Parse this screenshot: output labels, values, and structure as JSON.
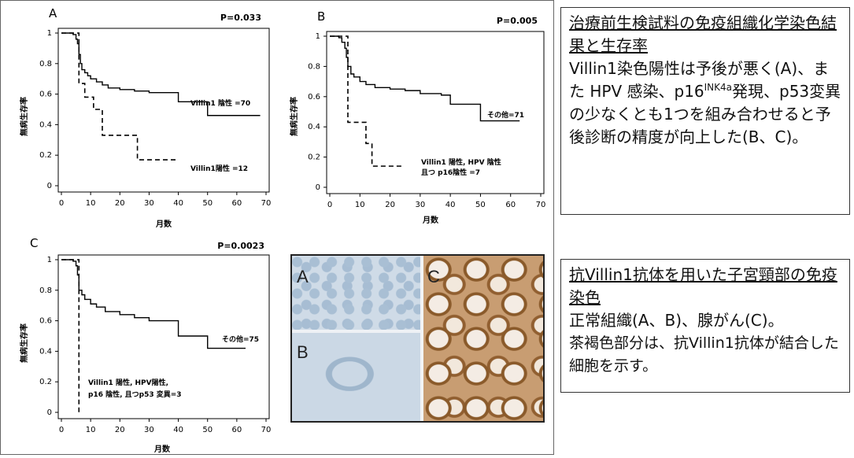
{
  "figure": {
    "panels": [
      {
        "letter": "A",
        "pvalue": "P=0.033",
        "xlabel": "月数",
        "ylabel": "無病生存率",
        "xticks": [
          "0",
          "10",
          "20",
          "30",
          "40",
          "50",
          "60",
          "70"
        ],
        "yticks": [
          "0",
          "0.2",
          "0.4",
          "0.6",
          "0.8",
          "1"
        ],
        "series_labels": [
          "Villin1 陰性 =70",
          "Villin1陽性 =12"
        ]
      },
      {
        "letter": "B",
        "pvalue": "P=0.005",
        "xlabel": "月数",
        "ylabel": "無病生存率",
        "xticks": [
          "0",
          "10",
          "20",
          "30",
          "40",
          "50",
          "60",
          "70"
        ],
        "yticks": [
          "0",
          "0.2",
          "0.4",
          "0.6",
          "0.8",
          "1"
        ],
        "series_labels": [
          "その他=71",
          "Villin1 陽性, HPV 陰性",
          "且つ p16陰性 =7"
        ]
      },
      {
        "letter": "C",
        "pvalue": "P=0.0023",
        "xlabel": "月数",
        "ylabel": "無病生存率",
        "xticks": [
          "0",
          "10",
          "20",
          "30",
          "40",
          "50",
          "60",
          "70"
        ],
        "yticks": [
          "0",
          "0.2",
          "0.4",
          "0.6",
          "0.8",
          "1"
        ],
        "series_labels": [
          "その他=75",
          "Villin1 陽性, HPV陽性,",
          "p16 陰性, 且つp53 変異=3"
        ]
      }
    ],
    "micro_labels": [
      "A",
      "B",
      "C"
    ]
  },
  "box1": {
    "title": "治療前生検試料の免疫組織化学染色結果と生存率",
    "body_pre": "Villin1染色陽性は予後が悪く(A)、また HPV 感染、p16",
    "body_sup": "INK4a",
    "body_post": "発現、p53変異の少なくとも1つを組み合わせると予後診断の精度が向上した(B、C)。"
  },
  "box2": {
    "title": "抗Villin1抗体を用いた子宮頸部の免疫染色",
    "line1": "正常組織(A、B)、腺がん(C)。",
    "line2": "茶褐色部分は、抗Villin1抗体が結合した細胞を示す。"
  },
  "chart_data": [
    {
      "type": "line",
      "title": "",
      "xlabel": "月数",
      "ylabel": "無病生存率",
      "xlim": [
        0,
        70
      ],
      "ylim": [
        0,
        1
      ],
      "series": [
        {
          "name": "Villin1 陰性 =70",
          "style": "solid",
          "x": [
            0,
            4,
            5,
            5.5,
            6,
            6.5,
            7,
            8,
            9,
            10,
            12,
            14,
            16,
            20,
            25,
            30,
            40,
            50,
            68
          ],
          "y": [
            1,
            0.99,
            0.96,
            0.93,
            0.86,
            0.8,
            0.76,
            0.74,
            0.72,
            0.7,
            0.68,
            0.66,
            0.64,
            0.63,
            0.62,
            0.61,
            0.55,
            0.46,
            0.46
          ]
        },
        {
          "name": "Villin1陽性 =12",
          "style": "dashed",
          "x": [
            0,
            5,
            6,
            8,
            11,
            14,
            26,
            40
          ],
          "y": [
            1,
            1,
            0.67,
            0.58,
            0.5,
            0.33,
            0.17,
            0.17
          ]
        }
      ]
    },
    {
      "type": "line",
      "title": "",
      "xlabel": "月数",
      "ylabel": "無病生存率",
      "xlim": [
        0,
        70
      ],
      "ylim": [
        0,
        1
      ],
      "series": [
        {
          "name": "その他=71",
          "style": "solid",
          "x": [
            0,
            3,
            4,
            5,
            5.5,
            6,
            7,
            8,
            10,
            12,
            15,
            20,
            25,
            30,
            37,
            40,
            50,
            63
          ],
          "y": [
            1,
            0.99,
            0.96,
            0.92,
            0.86,
            0.8,
            0.75,
            0.73,
            0.7,
            0.68,
            0.66,
            0.65,
            0.64,
            0.62,
            0.61,
            0.55,
            0.44,
            0.44
          ]
        },
        {
          "name": "Villin1 陽性, HPV 陰性 且つ p16陰性 =7",
          "style": "dashed",
          "x": [
            0,
            5,
            6,
            8,
            12,
            14,
            24
          ],
          "y": [
            1,
            1,
            0.43,
            0.43,
            0.29,
            0.14,
            0.14
          ]
        }
      ]
    },
    {
      "type": "line",
      "title": "",
      "xlabel": "月数",
      "ylabel": "無病生存率",
      "xlim": [
        0,
        70
      ],
      "ylim": [
        0,
        1
      ],
      "series": [
        {
          "name": "その他=75",
          "style": "solid",
          "x": [
            0,
            4,
            5,
            5.5,
            6,
            7,
            8,
            10,
            12,
            15,
            20,
            25,
            30,
            40,
            50,
            63
          ],
          "y": [
            1,
            0.99,
            0.96,
            0.9,
            0.8,
            0.77,
            0.74,
            0.71,
            0.69,
            0.66,
            0.64,
            0.62,
            0.6,
            0.5,
            0.42,
            0.42
          ]
        },
        {
          "name": "Villin1 陽性, HPV陽性, p16 陰性, 且つp53 変異=3",
          "style": "dashed",
          "x": [
            0,
            5,
            6,
            6.01
          ],
          "y": [
            1,
            1,
            0,
            0
          ]
        }
      ]
    }
  ]
}
